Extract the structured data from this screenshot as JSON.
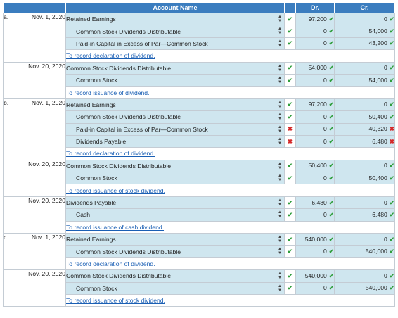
{
  "headers": {
    "account": "Account Name",
    "dr": "Dr.",
    "cr": "Cr."
  },
  "rows": [
    {
      "label": "a.",
      "date": "Nov. 1, 2020",
      "account": "Retained Earnings",
      "indent": false,
      "dr": "97,200",
      "cr": "0",
      "mark": "ok",
      "drmark": "ok",
      "crmark": "ok"
    },
    {
      "label": "",
      "date": "",
      "account": "Common Stock Dividends Distributable",
      "indent": true,
      "dr": "0",
      "cr": "54,000",
      "mark": "ok",
      "drmark": "ok",
      "crmark": "ok"
    },
    {
      "label": "",
      "date": "",
      "account": "Paid-in Capital in Excess of Par—Common Stock",
      "indent": true,
      "dr": "0",
      "cr": "43,200",
      "mark": "ok",
      "drmark": "ok",
      "crmark": "ok"
    },
    {
      "memo": "To record declaration of dividend."
    },
    {
      "label": "",
      "date": "Nov. 20, 2020",
      "account": "Common Stock Dividends Distributable",
      "indent": false,
      "dr": "54,000",
      "cr": "0",
      "mark": "ok",
      "drmark": "ok",
      "crmark": "ok"
    },
    {
      "label": "",
      "date": "",
      "account": "Common Stock",
      "indent": true,
      "dr": "0",
      "cr": "54,000",
      "mark": "ok",
      "drmark": "ok",
      "crmark": "ok"
    },
    {
      "memo": "To record issuance of dividend."
    },
    {
      "label": "b.",
      "date": "Nov. 1, 2020",
      "account": "Retained Earnings",
      "indent": false,
      "dr": "97,200",
      "cr": "0",
      "mark": "ok",
      "drmark": "ok",
      "crmark": "ok"
    },
    {
      "label": "",
      "date": "",
      "account": "Common Stock Dividends Distributable",
      "indent": true,
      "dr": "0",
      "cr": "50,400",
      "mark": "ok",
      "drmark": "ok",
      "crmark": "ok"
    },
    {
      "label": "",
      "date": "",
      "account": "Paid-in Capital in Excess of Par—Common Stock",
      "indent": true,
      "dr": "0",
      "cr": "40,320",
      "mark": "bad",
      "drmark": "ok",
      "crmark": "bad"
    },
    {
      "label": "",
      "date": "",
      "account": "Dividends Payable",
      "indent": true,
      "dr": "0",
      "cr": "6,480",
      "mark": "bad",
      "drmark": "ok",
      "crmark": "bad"
    },
    {
      "memo": "To record declaration of dividend."
    },
    {
      "label": "",
      "date": "Nov. 20, 2020",
      "account": "Common Stock Dividends Distributable",
      "indent": false,
      "dr": "50,400",
      "cr": "0",
      "mark": "ok",
      "drmark": "ok",
      "crmark": "ok"
    },
    {
      "label": "",
      "date": "",
      "account": "Common Stock",
      "indent": true,
      "dr": "0",
      "cr": "50,400",
      "mark": "ok",
      "drmark": "ok",
      "crmark": "ok"
    },
    {
      "memo": "To record issuance of stock dividend."
    },
    {
      "label": "",
      "date": "Nov. 20, 2020",
      "account": "Dividends Payable",
      "indent": false,
      "dr": "6,480",
      "cr": "0",
      "mark": "ok",
      "drmark": "ok",
      "crmark": "ok"
    },
    {
      "label": "",
      "date": "",
      "account": "Cash",
      "indent": true,
      "dr": "0",
      "cr": "6,480",
      "mark": "ok",
      "drmark": "ok",
      "crmark": "ok"
    },
    {
      "memo": "To record issuance of cash dividend."
    },
    {
      "label": "c.",
      "date": "Nov. 1, 2020",
      "account": "Retained Earnings",
      "indent": false,
      "dr": "540,000",
      "cr": "0",
      "mark": "ok",
      "drmark": "ok",
      "crmark": "ok"
    },
    {
      "label": "",
      "date": "",
      "account": "Common Stock Dividends Distributable",
      "indent": true,
      "dr": "0",
      "cr": "540,000",
      "mark": "ok",
      "drmark": "ok",
      "crmark": "ok"
    },
    {
      "memo": "To record declaration of dividend."
    },
    {
      "label": "",
      "date": "Nov. 20, 2020",
      "account": "Common Stock Dividends Distributable",
      "indent": false,
      "dr": "540,000",
      "cr": "0",
      "mark": "ok",
      "drmark": "ok",
      "crmark": "ok"
    },
    {
      "label": "",
      "date": "",
      "account": "Common Stock",
      "indent": true,
      "dr": "0",
      "cr": "540,000",
      "mark": "ok",
      "drmark": "ok",
      "crmark": "ok"
    },
    {
      "memo": "To record issuance of stock dividend."
    }
  ]
}
